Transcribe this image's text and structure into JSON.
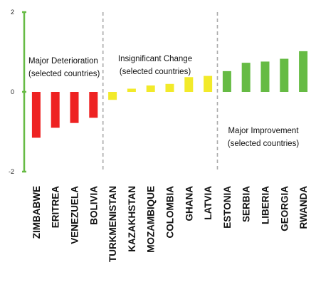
{
  "chart_data": {
    "type": "bar",
    "title": "",
    "xlabel": "",
    "ylabel": "",
    "ylim": [
      -2,
      2
    ],
    "yticks": [
      "2",
      "0",
      "-2"
    ],
    "grid": false,
    "categories": [
      "ZIMBABWE",
      "ERITREA",
      "VENEZUELA",
      "BOLIVIA",
      "TURKMENISTAN",
      "KAZAKHSTAN",
      "MOZAMBIQUE",
      "COLOMBIA",
      "GHANA",
      "LATVIA",
      "ESTONIA",
      "SERBIA",
      "LIBERIA",
      "GEORGIA",
      "RWANDA"
    ],
    "values": [
      -1.15,
      -0.9,
      -0.78,
      -0.65,
      -0.2,
      0.08,
      0.16,
      0.2,
      0.37,
      0.4,
      0.52,
      0.73,
      0.76,
      0.83,
      1.02
    ],
    "groups": [
      {
        "line1": "Major Deterioration",
        "line2": "(selected countries)",
        "color": "#ee2222",
        "start": 0,
        "end": 3
      },
      {
        "line1": "Insignificant Change",
        "line2": "(selected countries)",
        "color": "#f2ea2a",
        "start": 4,
        "end": 9
      },
      {
        "line1": "Major Improvement",
        "line2": "(selected countries)",
        "color": "#66bb44",
        "start": 10,
        "end": 14
      }
    ],
    "axis_color": "#66bb44",
    "separator_color": "#aaaaaa"
  }
}
